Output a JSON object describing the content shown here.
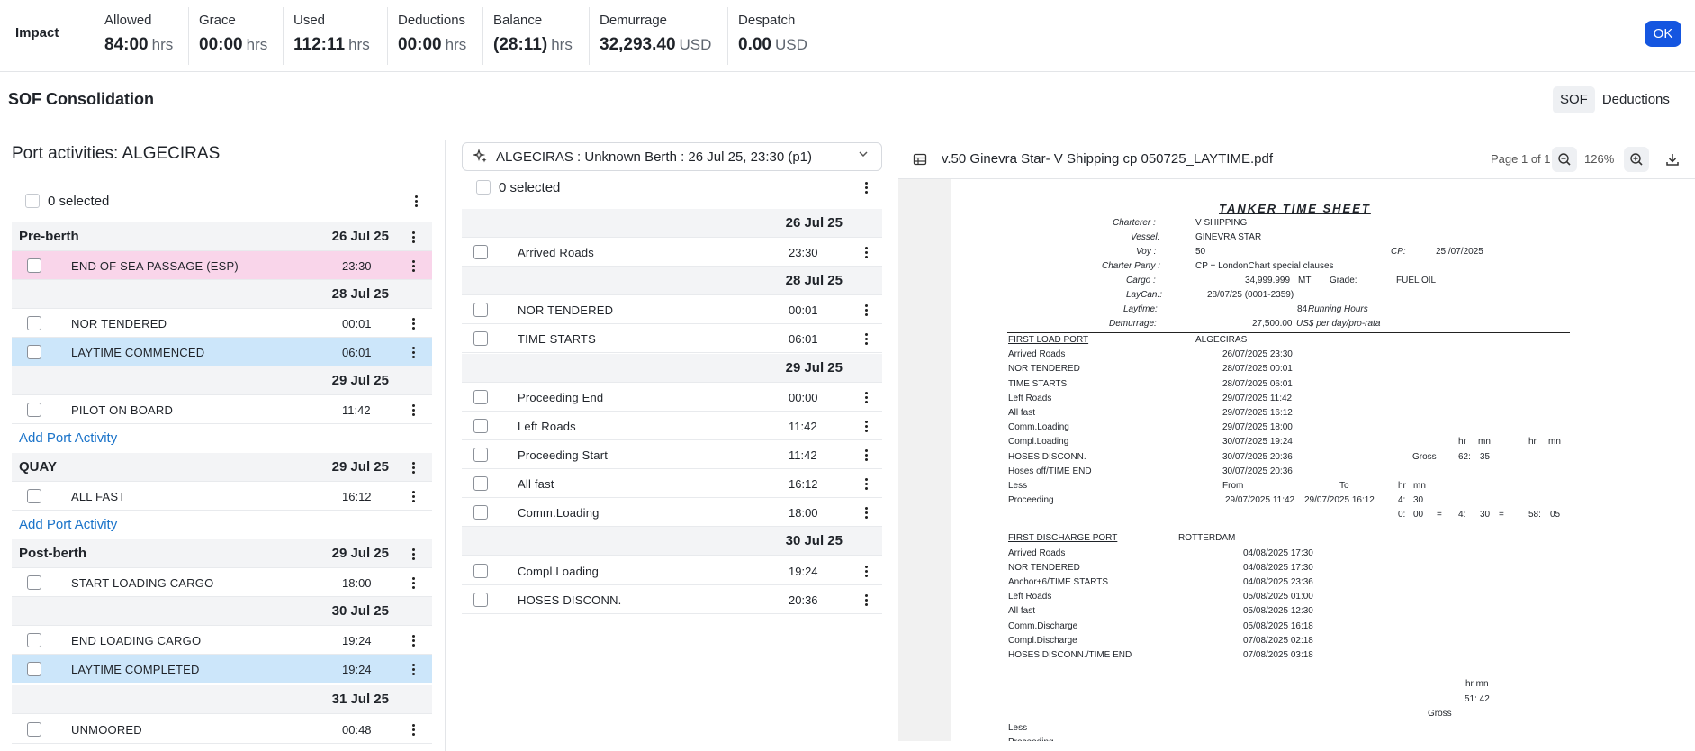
{
  "impact": {
    "title": "Impact",
    "metrics": [
      {
        "label": "Allowed",
        "value": "84:00",
        "unit": "hrs"
      },
      {
        "label": "Grace",
        "value": "00:00",
        "unit": "hrs"
      },
      {
        "label": "Used",
        "value": "112:11",
        "unit": "hrs"
      },
      {
        "label": "Deductions",
        "value": "00:00",
        "unit": "hrs"
      },
      {
        "label": "Balance",
        "value": "(28:11)",
        "unit": "hrs"
      },
      {
        "label": "Demurrage",
        "value": "32,293.40",
        "unit": "USD"
      },
      {
        "label": "Despatch",
        "value": "0.00",
        "unit": "USD"
      }
    ],
    "ok_label": "OK"
  },
  "header": {
    "title": "SOF Consolidation",
    "tabs": [
      "SOF",
      "Deductions"
    ],
    "active_tab": "SOF"
  },
  "left": {
    "title": "Port activities: ALGECIRAS",
    "selected_label": "0 selected",
    "groups": [
      {
        "name": "Pre-berth",
        "date": "26 Jul 25"
      },
      {
        "name": "QUAY",
        "date": "29 Jul 25"
      },
      {
        "name": "Post-berth",
        "date": "29 Jul 25"
      }
    ],
    "dates": [
      "28 Jul 25",
      "29 Jul 25",
      "30 Jul 25",
      "31 Jul 25"
    ],
    "activities": [
      {
        "name": "END OF SEA PASSAGE (ESP)",
        "time": "23:30"
      },
      {
        "name": "NOR TENDERED",
        "time": "00:01"
      },
      {
        "name": "LAYTIME COMMENCED",
        "time": "06:01"
      },
      {
        "name": "PILOT ON BOARD",
        "time": "11:42"
      },
      {
        "name": "ALL FAST",
        "time": "16:12"
      },
      {
        "name": "START LOADING CARGO",
        "time": "18:00"
      },
      {
        "name": "END LOADING CARGO",
        "time": "19:24"
      },
      {
        "name": "LAYTIME COMPLETED",
        "time": "19:24"
      },
      {
        "name": "UNMOORED",
        "time": "00:48"
      }
    ],
    "add_label": "Add Port Activity"
  },
  "middle": {
    "berth": "ALGECIRAS : Unknown Berth : 26 Jul 25, 23:30 (p1)",
    "selected_label": "0 selected",
    "dates": [
      "26 Jul 25",
      "28 Jul 25",
      "29 Jul 25",
      "30 Jul 25"
    ],
    "events": [
      {
        "name": "Arrived Roads",
        "time": "23:30"
      },
      {
        "name": "NOR TENDERED",
        "time": "00:01"
      },
      {
        "name": "TIME STARTS",
        "time": "06:01"
      },
      {
        "name": "Proceeding End",
        "time": "00:00"
      },
      {
        "name": "Left Roads",
        "time": "11:42"
      },
      {
        "name": "Proceeding Start",
        "time": "11:42"
      },
      {
        "name": "All fast",
        "time": "16:12"
      },
      {
        "name": "Comm.Loading",
        "time": "18:00"
      },
      {
        "name": "Compl.Loading",
        "time": "19:24"
      },
      {
        "name": "HOSES DISCONN.",
        "time": "20:36"
      }
    ]
  },
  "pdf": {
    "filename": "v.50 Ginevra Star- V Shipping cp 050725_LAYTIME.pdf",
    "page_label": "Page 1 of 1",
    "zoom": "126%",
    "doc": {
      "title": "TANKER TIME SHEET",
      "charterer_label": "Charterer :",
      "charterer": "V SHIPPING",
      "vessel_label": "Vessel:",
      "vessel": "GINEVRA STAR",
      "voy_label": "Voy :",
      "voy": "50",
      "cp_label": "CP:",
      "cp": "25 /07/2025",
      "party_label": "Charter Party :",
      "party": "CP + LondonChart special clauses",
      "cargo_label": "Cargo :",
      "cargo": "34,999.999",
      "cargo_unit": "MT",
      "grade_label": "Grade:",
      "grade": "FUEL OIL",
      "laycan_label": "LayCan.:",
      "laycan": "28/07/25 (0001-2359)",
      "laytime_label": "Laytime:",
      "laytime": "84",
      "laytime_unit": "Running Hours",
      "dem_label": "Demurrage:",
      "dem": "27,500.00",
      "dem_unit": "US$ per day/pro-rata",
      "load_port_label": "FIRST LOAD PORT",
      "load_port": "ALGECIRAS",
      "load_events": [
        {
          "name": "Arrived Roads",
          "dt": "26/07/2025 23:30"
        },
        {
          "name": "NOR TENDERED",
          "dt": "28/07/2025 00:01"
        },
        {
          "name": "TIME STARTS",
          "dt": "28/07/2025 06:01"
        },
        {
          "name": "Left Roads",
          "dt": "29/07/2025 11:42"
        },
        {
          "name": "All fast",
          "dt": "29/07/2025 16:12"
        },
        {
          "name": "Comm.Loading",
          "dt": "29/07/2025 18:00"
        },
        {
          "name": "Compl.Loading",
          "dt": "30/07/2025 19:24"
        },
        {
          "name": "HOSES DISCONN.",
          "dt": "30/07/2025 20:36"
        },
        {
          "name": "Hoses off/TIME END",
          "dt": "30/07/2025 20:36"
        }
      ],
      "hr": "hr",
      "mn": "mn",
      "gross": "Gross",
      "gross_h": "62:",
      "gross_m": "35",
      "less": "Less",
      "from": "From",
      "to": "To",
      "proceeding": "Proceeding",
      "proc_from": "29/07/2025 11:42",
      "proc_to": "29/07/2025 16:12",
      "proc_h": "4:",
      "proc_m": "30",
      "calc": [
        "0:",
        "00",
        "=",
        "4:",
        "30",
        "=",
        "58:",
        "05"
      ],
      "disch_port_label": "FIRST DISCHARGE PORT",
      "disch_port": "ROTTERDAM",
      "disch_events": [
        {
          "name": "Arrived Roads",
          "dt": "04/08/2025 17:30"
        },
        {
          "name": "NOR TENDERED",
          "dt": "04/08/2025 17:30"
        },
        {
          "name": "Anchor+6/TIME STARTS",
          "dt": "04/08/2025 23:36"
        },
        {
          "name": "Left Roads",
          "dt": "05/08/2025 01:00"
        },
        {
          "name": "All fast",
          "dt": "05/08/2025 12:30"
        },
        {
          "name": "Comm.Discharge",
          "dt": "05/08/2025 16:18"
        },
        {
          "name": "Compl.Discharge",
          "dt": "07/08/2025 02:18"
        },
        {
          "name": "HOSES DISCONN./TIME END",
          "dt": "07/08/2025 03:18"
        }
      ],
      "hr_mn": "hr mn",
      "disch_total": "51: 42"
    }
  }
}
